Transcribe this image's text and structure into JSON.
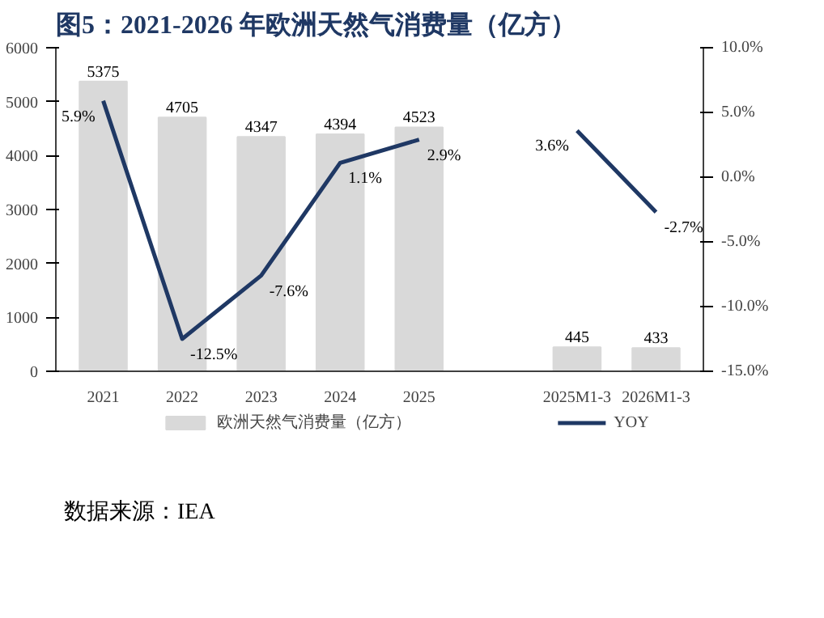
{
  "chart_data": {
    "type": "bar",
    "title": "图5：2021-2026 年欧洲天然气消费量（亿方）",
    "categories": [
      "2021",
      "2022",
      "2023",
      "2024",
      "2025",
      null,
      "2025M1-3",
      "2026M1-3"
    ],
    "series": [
      {
        "name": "欧洲天然气消费量（亿方）",
        "color": "#d9d9d9",
        "values": [
          5375,
          4705,
          4347,
          4394,
          4523,
          null,
          445,
          433
        ]
      },
      {
        "name": "YOY",
        "type": "line",
        "axis": "y2",
        "color": "#1f3864",
        "values": [
          5.9,
          -12.5,
          -7.6,
          1.1,
          2.9,
          null,
          3.6,
          -2.7
        ],
        "value_labels": [
          "5.9%",
          "-12.5%",
          "-7.6%",
          "1.1%",
          "2.9%",
          null,
          "3.6%",
          "-2.7%"
        ]
      }
    ],
    "data_labels": true,
    "ylim": [
      0,
      6000
    ],
    "yticks": [
      0,
      1000,
      2000,
      3000,
      4000,
      5000,
      6000
    ],
    "y2lim": [
      -15,
      10
    ],
    "y2ticks": [
      {
        "value": -15,
        "label": "-15.0%"
      },
      {
        "value": -10,
        "label": "-10.0%"
      },
      {
        "value": -5,
        "label": "-5.0%"
      },
      {
        "value": 0,
        "label": "0.0%"
      },
      {
        "value": 5,
        "label": "5.0%"
      },
      {
        "value": 10,
        "label": "10.0%"
      }
    ],
    "grid": false,
    "legend": "bottom",
    "annotations": [
      "数据来源：IEA"
    ]
  }
}
